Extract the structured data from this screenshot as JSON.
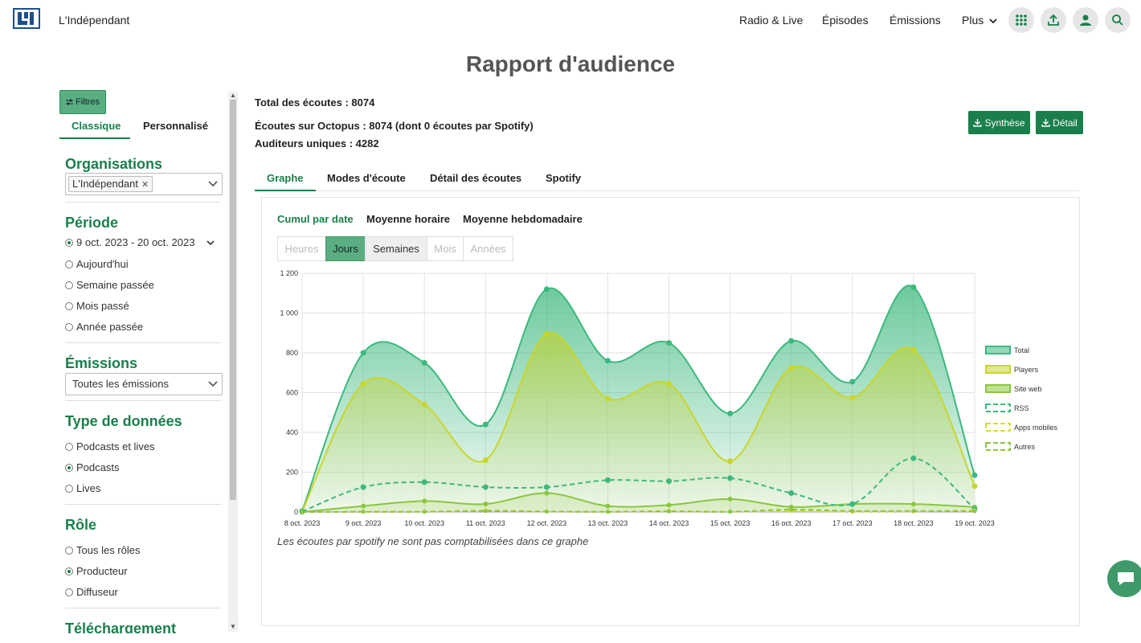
{
  "header": {
    "brand": "L'Indépendant",
    "nav": [
      "Radio & Live",
      "Épisodes",
      "Émissions",
      "Plus"
    ],
    "icons": [
      "apps-grid-icon",
      "upload-icon",
      "user-icon",
      "search-icon"
    ]
  },
  "page_title": "Rapport d'audience",
  "sidebar": {
    "filter_button": "Filtres",
    "tabs": [
      "Classique",
      "Personnalisé"
    ],
    "organisations": {
      "title": "Organisations",
      "chip": "L'Indépendant"
    },
    "periode": {
      "title": "Période",
      "selected_range": "9 oct. 2023 - 20 oct. 2023",
      "options": [
        "Aujourd'hui",
        "Semaine passée",
        "Mois passé",
        "Année passée"
      ]
    },
    "emissions": {
      "title": "Émissions",
      "value": "Toutes les émissions"
    },
    "type_donnees": {
      "title": "Type de données",
      "options": [
        "Podcasts et lives",
        "Podcasts",
        "Lives"
      ],
      "selected": "Podcasts"
    },
    "role": {
      "title": "Rôle",
      "options": [
        "Tous les rôles",
        "Producteur",
        "Diffuseur"
      ],
      "selected": "Producteur"
    },
    "telechargement": {
      "title": "Téléchargement"
    }
  },
  "stats": {
    "total": "Total des écoutes : 8074",
    "octopus": "Écoutes sur Octopus : 8074 (dont 0 écoutes par Spotify)",
    "uniques": "Auditeurs uniques : 4282"
  },
  "buttons": {
    "synthese": "Synthèse",
    "detail": "Détail"
  },
  "main_tabs": [
    "Graphe",
    "Modes d'écoute",
    "Détail des écoutes",
    "Spotify"
  ],
  "sub_tabs": [
    "Cumul par date",
    "Moyenne horaire",
    "Moyenne hebdomadaire"
  ],
  "granularity": [
    "Heures",
    "Jours",
    "Semaines",
    "Mois",
    "Années"
  ],
  "granularity_active": "Jours",
  "chart_note": "Les écoutes par spotify ne sont pas comptabilisées dans ce graphe",
  "colors": {
    "accent": "#1a7f4b",
    "total": "#3cb97d",
    "players": "#c8d62b",
    "site_web": "#8cc63f",
    "rss": "#3cb97d",
    "apps_mobiles": "#d8de2b",
    "autres": "#8cc63f"
  },
  "chart_data": {
    "type": "area",
    "categories": [
      "8 oct. 2023",
      "9 oct. 2023",
      "10 oct. 2023",
      "11 oct. 2023",
      "12 oct. 2023",
      "13 oct. 2023",
      "14 oct. 2023",
      "15 oct. 2023",
      "16 oct. 2023",
      "17 oct. 2023",
      "18 oct. 2023",
      "19 oct. 2023"
    ],
    "ylim": [
      0,
      1200
    ],
    "yticks": [
      0,
      200,
      400,
      600,
      800,
      1000,
      1200
    ],
    "ytick_labels": [
      "0",
      "200",
      "400",
      "600",
      "800",
      "1 000",
      "1 200"
    ],
    "grid": true,
    "legend": "right",
    "series": [
      {
        "name": "Total",
        "values": [
          5,
          800,
          750,
          440,
          1120,
          760,
          850,
          495,
          860,
          655,
          1130,
          185
        ]
      },
      {
        "name": "Players",
        "values": [
          3,
          645,
          540,
          260,
          895,
          570,
          645,
          255,
          725,
          575,
          815,
          130
        ]
      },
      {
        "name": "Site web",
        "values": [
          0,
          30,
          55,
          40,
          95,
          30,
          35,
          65,
          25,
          40,
          40,
          25
        ]
      },
      {
        "name": "RSS",
        "values": [
          2,
          125,
          150,
          125,
          125,
          160,
          155,
          170,
          95,
          40,
          270,
          15
        ]
      },
      {
        "name": "Apps mobiles",
        "values": [
          0,
          1,
          2,
          8,
          3,
          1,
          5,
          2,
          5,
          2,
          3,
          8
        ]
      },
      {
        "name": "Autres",
        "values": [
          0,
          1,
          1,
          5,
          2,
          1,
          3,
          1,
          12,
          5,
          5,
          4
        ]
      }
    ]
  }
}
